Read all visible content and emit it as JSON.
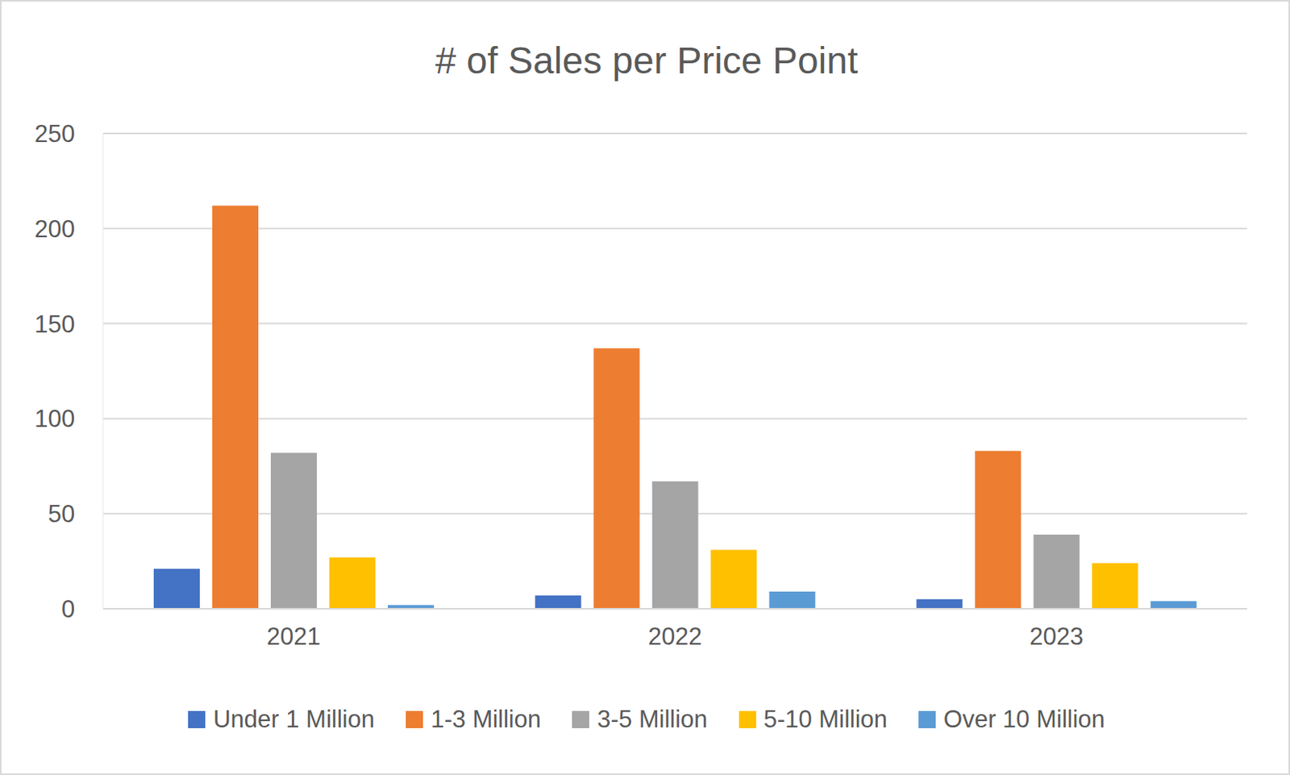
{
  "chart_data": {
    "type": "bar",
    "title": "# of Sales per Price Point",
    "categories": [
      "2021",
      "2022",
      "2023"
    ],
    "series": [
      {
        "name": "Under 1 Million",
        "color": "#4472c4",
        "values": [
          21,
          7,
          5
        ]
      },
      {
        "name": "1-3 Million",
        "color": "#ed7d31",
        "values": [
          212,
          137,
          83
        ]
      },
      {
        "name": "3-5 Million",
        "color": "#a5a5a5",
        "values": [
          82,
          67,
          39
        ]
      },
      {
        "name": "5-10 Million",
        "color": "#ffc000",
        "values": [
          27,
          31,
          24
        ]
      },
      {
        "name": "Over 10 Million",
        "color": "#5b9bd5",
        "values": [
          2,
          9,
          4
        ]
      }
    ],
    "ylim": [
      0,
      250
    ],
    "yticks": [
      0,
      50,
      100,
      150,
      200,
      250
    ],
    "grid": true,
    "legend": "bottom"
  }
}
